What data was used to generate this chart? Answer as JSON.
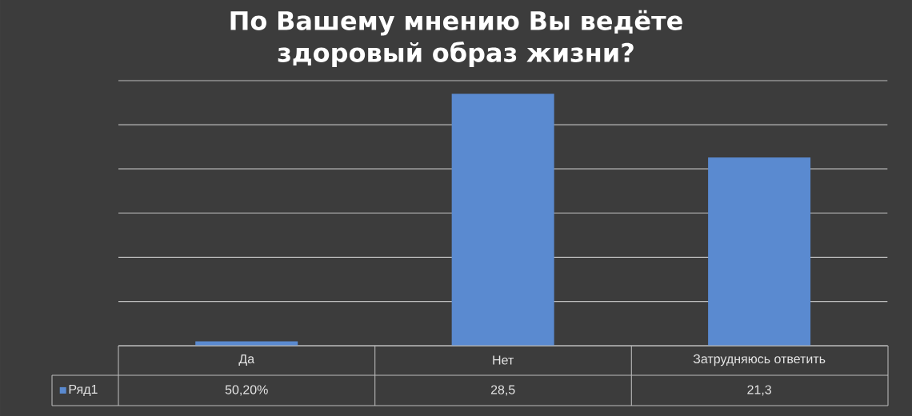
{
  "chart_data": {
    "type": "bar",
    "title": "По Вашему мнению Вы ведёте здоровый образ жизни?",
    "categories": [
      "Да",
      "Нет",
      "Затрудняюсь ответить"
    ],
    "series": [
      {
        "name": "Ряд1",
        "color": "#5a8ad0",
        "values": [
          0.502,
          28.5,
          21.3
        ],
        "value_labels": [
          "50,20%",
          "28,5",
          "21,3"
        ]
      }
    ],
    "ylim": [
      0,
      30
    ],
    "yticks": [
      {
        "value": 0,
        "label": null
      },
      {
        "value": 5,
        "label": null
      },
      {
        "value": 10,
        "label": null
      },
      {
        "value": 15,
        "label": null
      },
      {
        "value": 20,
        "label": null
      },
      {
        "value": 25,
        "label": null
      },
      {
        "value": 30,
        "label": null
      }
    ],
    "grid": "y",
    "legend": "bottom left",
    "tick_labels": "x"
  }
}
